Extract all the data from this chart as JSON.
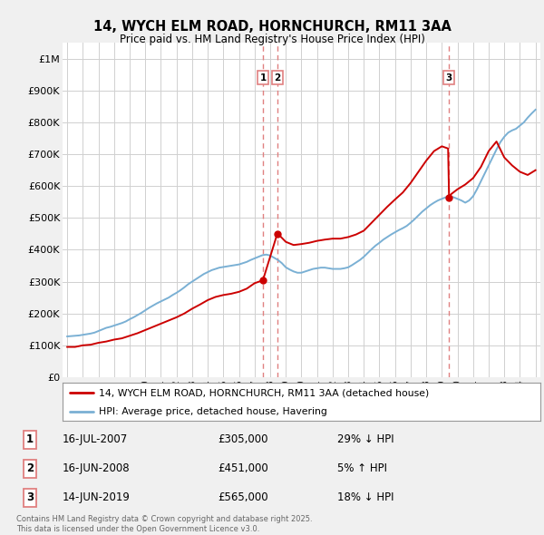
{
  "title": "14, WYCH ELM ROAD, HORNCHURCH, RM11 3AA",
  "subtitle": "Price paid vs. HM Land Registry's House Price Index (HPI)",
  "ylim": [
    0,
    1050000
  ],
  "yticks": [
    0,
    100000,
    200000,
    300000,
    400000,
    500000,
    600000,
    700000,
    800000,
    900000,
    1000000
  ],
  "ytick_labels": [
    "£0",
    "£100K",
    "£200K",
    "£300K",
    "£400K",
    "£500K",
    "£600K",
    "£700K",
    "£800K",
    "£900K",
    "£1M"
  ],
  "background_color": "#f0f0f0",
  "plot_bg_color": "#ffffff",
  "red_color": "#cc0000",
  "blue_color": "#7ab0d4",
  "grid_color": "#d0d0d0",
  "vline_color": "#e08080",
  "vline_dates": [
    2007.54,
    2008.46,
    2019.46
  ],
  "vline_labels": [
    "1",
    "2",
    "3"
  ],
  "sale_points": [
    {
      "date": 2007.54,
      "price": 305000
    },
    {
      "date": 2008.46,
      "price": 451000
    },
    {
      "date": 2019.46,
      "price": 565000
    }
  ],
  "legend_entries": [
    "14, WYCH ELM ROAD, HORNCHURCH, RM11 3AA (detached house)",
    "HPI: Average price, detached house, Havering"
  ],
  "table_rows": [
    {
      "num": "1",
      "date": "16-JUL-2007",
      "price": "£305,000",
      "pct": "29% ↓ HPI"
    },
    {
      "num": "2",
      "date": "16-JUN-2008",
      "price": "£451,000",
      "pct": "5% ↑ HPI"
    },
    {
      "num": "3",
      "date": "14-JUN-2019",
      "price": "£565,000",
      "pct": "18% ↓ HPI"
    }
  ],
  "footer": "Contains HM Land Registry data © Crown copyright and database right 2025.\nThis data is licensed under the Open Government Licence v3.0.",
  "hpi_x": [
    1995.0,
    1995.25,
    1995.5,
    1995.75,
    1996.0,
    1996.25,
    1996.5,
    1996.75,
    1997.0,
    1997.25,
    1997.5,
    1997.75,
    1998.0,
    1998.25,
    1998.5,
    1998.75,
    1999.0,
    1999.25,
    1999.5,
    1999.75,
    2000.0,
    2000.25,
    2000.5,
    2000.75,
    2001.0,
    2001.25,
    2001.5,
    2001.75,
    2002.0,
    2002.25,
    2002.5,
    2002.75,
    2003.0,
    2003.25,
    2003.5,
    2003.75,
    2004.0,
    2004.25,
    2004.5,
    2004.75,
    2005.0,
    2005.25,
    2005.5,
    2005.75,
    2006.0,
    2006.25,
    2006.5,
    2006.75,
    2007.0,
    2007.25,
    2007.5,
    2007.75,
    2008.0,
    2008.25,
    2008.5,
    2008.75,
    2009.0,
    2009.25,
    2009.5,
    2009.75,
    2010.0,
    2010.25,
    2010.5,
    2010.75,
    2011.0,
    2011.25,
    2011.5,
    2011.75,
    2012.0,
    2012.25,
    2012.5,
    2012.75,
    2013.0,
    2013.25,
    2013.5,
    2013.75,
    2014.0,
    2014.25,
    2014.5,
    2014.75,
    2015.0,
    2015.25,
    2015.5,
    2015.75,
    2016.0,
    2016.25,
    2016.5,
    2016.75,
    2017.0,
    2017.25,
    2017.5,
    2017.75,
    2018.0,
    2018.25,
    2018.5,
    2018.75,
    2019.0,
    2019.25,
    2019.5,
    2019.75,
    2020.0,
    2020.25,
    2020.5,
    2020.75,
    2021.0,
    2021.25,
    2021.5,
    2021.75,
    2022.0,
    2022.25,
    2022.5,
    2022.75,
    2023.0,
    2023.25,
    2023.5,
    2023.75,
    2024.0,
    2024.25,
    2024.5,
    2024.75,
    2025.0
  ],
  "hpi_y": [
    128000,
    129000,
    130000,
    131000,
    133000,
    135000,
    137000,
    140000,
    145000,
    150000,
    155000,
    158000,
    162000,
    166000,
    170000,
    175000,
    182000,
    188000,
    195000,
    202000,
    210000,
    218000,
    225000,
    232000,
    238000,
    244000,
    250000,
    258000,
    265000,
    273000,
    282000,
    292000,
    300000,
    308000,
    316000,
    324000,
    330000,
    336000,
    340000,
    344000,
    346000,
    348000,
    350000,
    352000,
    354000,
    358000,
    362000,
    368000,
    373000,
    378000,
    383000,
    385000,
    382000,
    375000,
    368000,
    358000,
    345000,
    338000,
    332000,
    328000,
    328000,
    332000,
    336000,
    340000,
    342000,
    344000,
    344000,
    342000,
    340000,
    340000,
    340000,
    342000,
    345000,
    352000,
    360000,
    368000,
    378000,
    390000,
    402000,
    413000,
    422000,
    432000,
    440000,
    448000,
    455000,
    462000,
    468000,
    475000,
    485000,
    496000,
    508000,
    520000,
    530000,
    540000,
    548000,
    555000,
    560000,
    565000,
    568000,
    565000,
    560000,
    555000,
    548000,
    555000,
    568000,
    590000,
    615000,
    640000,
    665000,
    690000,
    715000,
    738000,
    755000,
    768000,
    775000,
    780000,
    790000,
    800000,
    815000,
    828000,
    840000
  ],
  "price_x": [
    1995.0,
    1995.5,
    1996.0,
    1996.5,
    1997.0,
    1997.5,
    1998.0,
    1998.5,
    1999.0,
    1999.5,
    2000.0,
    2000.5,
    2001.0,
    2001.5,
    2002.0,
    2002.5,
    2003.0,
    2003.5,
    2004.0,
    2004.5,
    2005.0,
    2005.5,
    2006.0,
    2006.5,
    2007.0,
    2007.4,
    2007.54,
    2008.46,
    2008.6,
    2009.0,
    2009.5,
    2010.0,
    2010.5,
    2011.0,
    2011.5,
    2012.0,
    2012.5,
    2013.0,
    2013.5,
    2014.0,
    2014.5,
    2015.0,
    2015.5,
    2016.0,
    2016.5,
    2017.0,
    2017.5,
    2018.0,
    2018.5,
    2019.0,
    2019.4,
    2019.46,
    2019.6,
    2020.0,
    2020.5,
    2021.0,
    2021.5,
    2022.0,
    2022.5,
    2023.0,
    2023.5,
    2024.0,
    2024.5,
    2025.0
  ],
  "price_y": [
    95000,
    95000,
    100000,
    102000,
    108000,
    112000,
    118000,
    122000,
    130000,
    138000,
    148000,
    158000,
    168000,
    178000,
    188000,
    200000,
    215000,
    228000,
    242000,
    252000,
    258000,
    262000,
    268000,
    278000,
    295000,
    302000,
    305000,
    451000,
    445000,
    425000,
    415000,
    418000,
    422000,
    428000,
    432000,
    435000,
    435000,
    440000,
    448000,
    460000,
    485000,
    510000,
    535000,
    558000,
    580000,
    610000,
    645000,
    680000,
    710000,
    725000,
    718000,
    565000,
    575000,
    590000,
    605000,
    625000,
    660000,
    710000,
    740000,
    690000,
    665000,
    645000,
    635000,
    650000
  ]
}
